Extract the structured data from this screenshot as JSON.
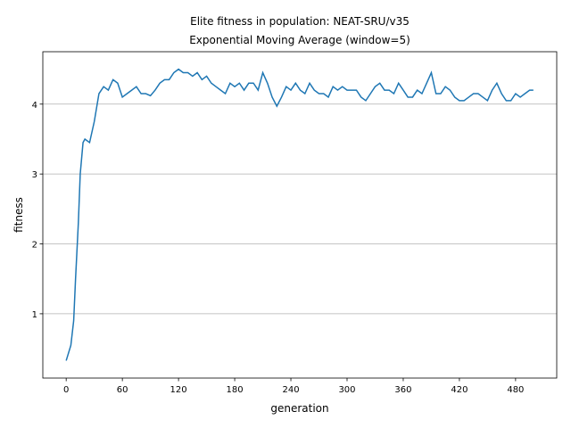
{
  "chart_data": {
    "type": "line",
    "title": "Elite fitness in population: NEAT-SRU/v35",
    "subtitle": "Exponential Moving Average (window=5)",
    "x_label": "generation",
    "y_label": "fitness",
    "x": [
      0,
      5,
      8,
      10,
      13,
      15,
      18,
      20,
      25,
      30,
      35,
      40,
      45,
      50,
      55,
      60,
      65,
      70,
      75,
      80,
      85,
      90,
      95,
      100,
      105,
      110,
      115,
      120,
      125,
      130,
      135,
      140,
      145,
      150,
      155,
      160,
      165,
      170,
      175,
      180,
      185,
      190,
      195,
      200,
      205,
      210,
      215,
      220,
      225,
      230,
      235,
      240,
      245,
      250,
      255,
      260,
      265,
      270,
      275,
      280,
      285,
      290,
      295,
      300,
      305,
      310,
      315,
      320,
      325,
      330,
      335,
      340,
      345,
      350,
      355,
      360,
      365,
      370,
      375,
      380,
      385,
      390,
      395,
      400,
      405,
      410,
      415,
      420,
      425,
      430,
      435,
      440,
      445,
      450,
      455,
      460,
      465,
      470,
      475,
      480,
      485,
      490,
      495,
      499
    ],
    "series": [
      {
        "name": "fitness",
        "color": "#1f77b4",
        "values": [
          0.33,
          0.55,
          0.9,
          1.5,
          2.3,
          3.0,
          3.45,
          3.5,
          3.45,
          3.75,
          4.15,
          4.25,
          4.2,
          4.35,
          4.3,
          4.1,
          4.15,
          4.2,
          4.25,
          4.15,
          4.15,
          4.12,
          4.2,
          4.3,
          4.35,
          4.35,
          4.45,
          4.5,
          4.45,
          4.45,
          4.4,
          4.45,
          4.35,
          4.4,
          4.3,
          4.25,
          4.2,
          4.15,
          4.3,
          4.25,
          4.3,
          4.2,
          4.3,
          4.3,
          4.2,
          4.45,
          4.3,
          4.1,
          3.97,
          4.1,
          4.25,
          4.2,
          4.3,
          4.2,
          4.15,
          4.3,
          4.2,
          4.15,
          4.15,
          4.1,
          4.25,
          4.2,
          4.25,
          4.2,
          4.2,
          4.2,
          4.1,
          4.05,
          4.15,
          4.25,
          4.3,
          4.2,
          4.2,
          4.15,
          4.3,
          4.2,
          4.1,
          4.1,
          4.2,
          4.15,
          4.3,
          4.45,
          4.15,
          4.15,
          4.25,
          4.2,
          4.1,
          4.05,
          4.05,
          4.1,
          4.15,
          4.15,
          4.1,
          4.05,
          4.2,
          4.3,
          4.15,
          4.05,
          4.05,
          4.15,
          4.1,
          4.15,
          4.2,
          4.2
        ]
      }
    ],
    "xlim": [
      -24.95,
      523.95
    ],
    "ylim": [
      0.08,
      4.75
    ],
    "xticks": [
      0,
      60,
      120,
      180,
      240,
      300,
      360,
      420,
      480
    ],
    "yticks": [
      1,
      2,
      3,
      4
    ],
    "grid": "y"
  }
}
